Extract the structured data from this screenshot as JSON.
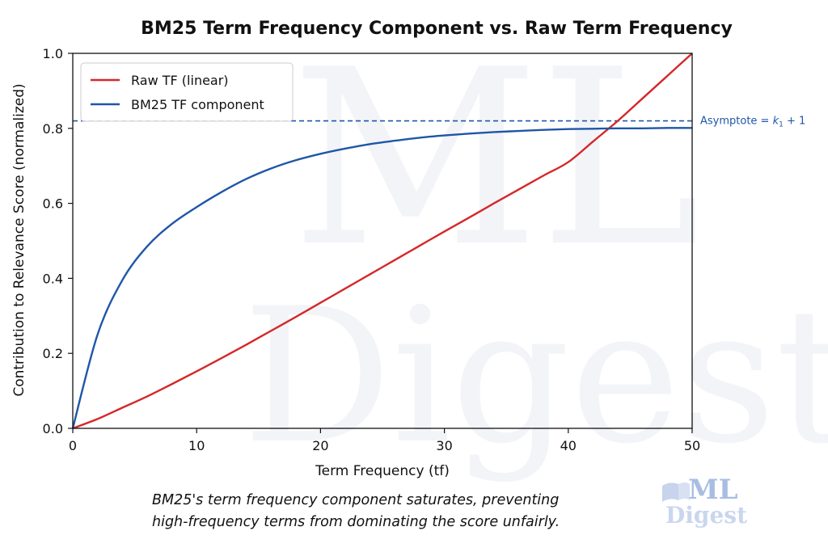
{
  "chart_data": {
    "type": "line",
    "title": "BM25 Term Frequency Component vs. Raw Term Frequency",
    "xlabel": "Term Frequency (tf)",
    "ylabel": "Contribution to Relevance Score (normalized)",
    "xlim": [
      0,
      50
    ],
    "ylim": [
      0,
      1
    ],
    "x_ticks": [
      0,
      10,
      20,
      30,
      40,
      50
    ],
    "y_ticks": [
      0.0,
      0.2,
      0.4,
      0.6,
      0.8,
      1.0
    ],
    "x_tick_labels": [
      "0",
      "10",
      "20",
      "30",
      "40",
      "50"
    ],
    "y_tick_labels": [
      "0.0",
      "0.2",
      "0.4",
      "0.6",
      "0.8",
      "1.0"
    ],
    "grid": false,
    "legend_position": "top-left",
    "x": [
      0,
      2,
      4,
      6,
      8,
      10,
      12,
      14,
      16,
      18,
      20,
      22,
      24,
      26,
      28,
      30,
      32,
      34,
      36,
      38,
      40,
      42,
      44,
      46,
      48,
      50
    ],
    "series": [
      {
        "name": "Raw TF (linear)",
        "color": "#d62728",
        "values": [
          0.0,
          0.025,
          0.055,
          0.085,
          0.118,
          0.152,
          0.187,
          0.223,
          0.26,
          0.297,
          0.335,
          0.373,
          0.411,
          0.449,
          0.487,
          0.525,
          0.562,
          0.6,
          0.637,
          0.674,
          0.71,
          0.765,
          0.82,
          0.88,
          0.94,
          1.0
        ]
      },
      {
        "name": "BM25 TF component",
        "color": "#1f56a8",
        "values": [
          0.0,
          0.25,
          0.395,
          0.485,
          0.545,
          0.59,
          0.63,
          0.665,
          0.693,
          0.715,
          0.732,
          0.746,
          0.758,
          0.767,
          0.775,
          0.781,
          0.786,
          0.79,
          0.793,
          0.796,
          0.798,
          0.799,
          0.8,
          0.8,
          0.801,
          0.801
        ]
      }
    ],
    "asymptote": {
      "y": 0.82,
      "label_prefix": "Asymptote = ",
      "label_var": "k",
      "label_sub": "1",
      "label_suffix": " + 1",
      "color": "#1f56a8",
      "style": "dashed"
    }
  },
  "caption": {
    "line1": "BM25's term frequency component saturates, preventing",
    "line2": "high-frequency terms from dominating the score unfairly."
  },
  "watermark": {
    "top": "ML",
    "bottom": "Digest"
  }
}
